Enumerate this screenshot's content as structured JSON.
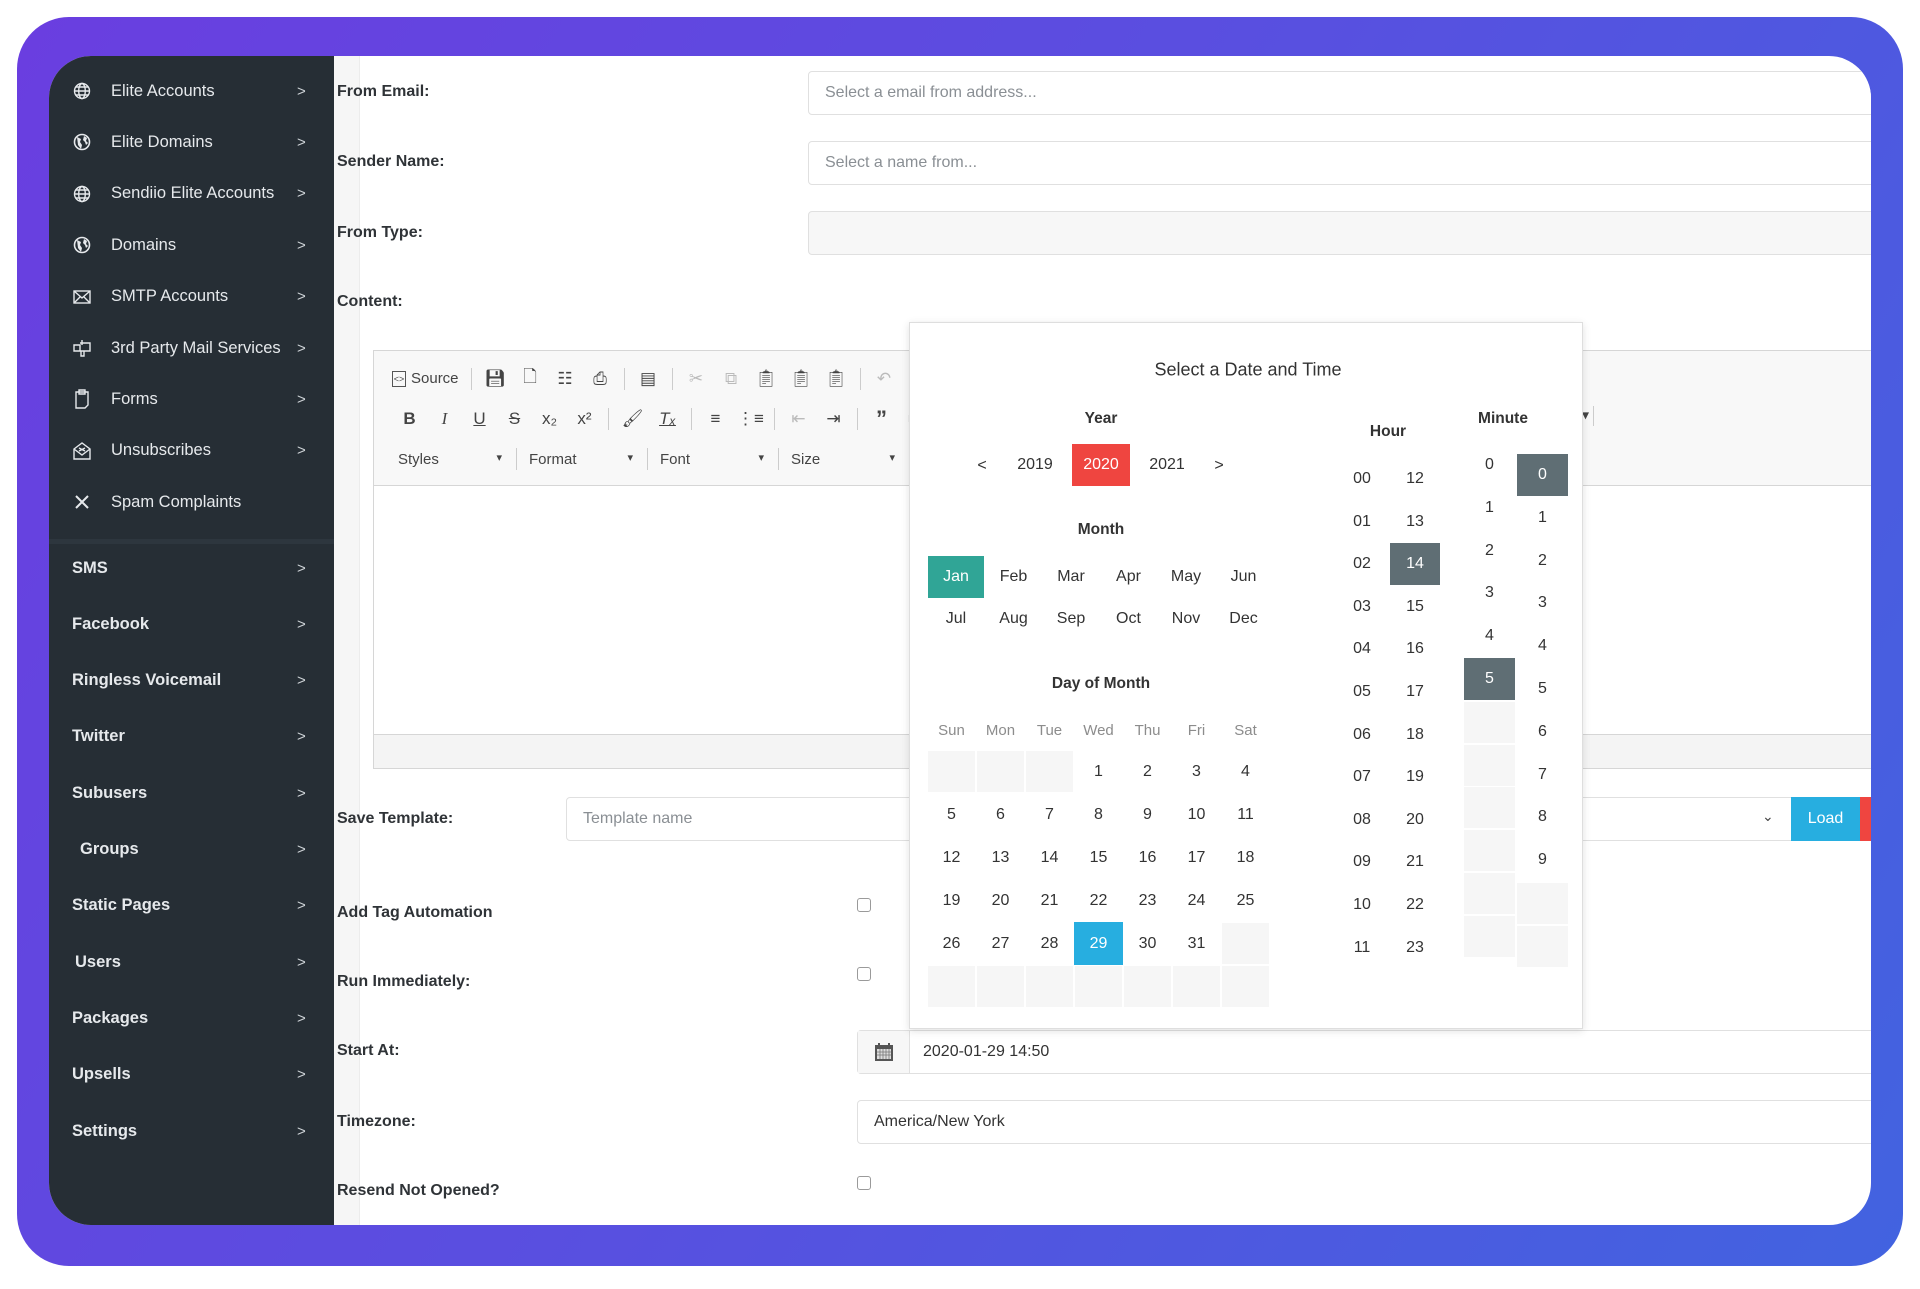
{
  "colors": {
    "sidebar": "#262e35",
    "year_selected": "#ef4540",
    "month_selected": "#30a596",
    "day_selected": "#27aee0",
    "time_selected": "#5f6e74",
    "load_button": "#27aee0"
  },
  "sidebar": {
    "top_items": [
      {
        "label": "Elite Accounts",
        "icon": "globe-grid-icon"
      },
      {
        "label": "Elite Domains",
        "icon": "globe-icon"
      },
      {
        "label": "Sendiio Elite Accounts",
        "icon": "globe-grid-icon"
      },
      {
        "label": "Domains",
        "icon": "globe-icon"
      },
      {
        "label": "SMTP Accounts",
        "icon": "envelope-icon"
      },
      {
        "label": "3rd Party Mail Services",
        "icon": "mailbox-icon"
      },
      {
        "label": "Forms",
        "icon": "clipboard-icon"
      },
      {
        "label": "Unsubscribes",
        "icon": "envelope-open-icon"
      },
      {
        "label": "Spam Complaints",
        "icon": "close-icon"
      }
    ],
    "bottom_items": [
      {
        "label": "SMS"
      },
      {
        "label": "Facebook"
      },
      {
        "label": "Ringless Voicemail"
      },
      {
        "label": "Twitter"
      },
      {
        "label": "Subusers"
      },
      {
        "label": "Groups"
      },
      {
        "label": "Static Pages"
      },
      {
        "label": "Users"
      },
      {
        "label": "Packages"
      },
      {
        "label": "Upsells"
      },
      {
        "label": "Settings"
      }
    ],
    "chevron": ">"
  },
  "form": {
    "from_email": {
      "label": "From Email:",
      "placeholder": "Select a email from address..."
    },
    "sender_name": {
      "label": "Sender Name:",
      "placeholder": "Select a name from..."
    },
    "from_type": {
      "label": "From Type:",
      "value": ""
    },
    "content": {
      "label": "Content:"
    },
    "save_template": {
      "label": "Save Template:",
      "placeholder": "Template name",
      "load_label": "Load"
    },
    "add_tag": {
      "label": "Add Tag Automation",
      "checked": false
    },
    "run_immediately": {
      "label": "Run Immediately:",
      "checked": false
    },
    "start_at": {
      "label": "Start At:",
      "value": "2020-01-29 14:50"
    },
    "timezone": {
      "label": "Timezone:",
      "value": "America/New York"
    },
    "resend": {
      "label": "Resend Not Opened?",
      "checked": false
    }
  },
  "editor": {
    "source_label": "Source",
    "combos": [
      "Styles",
      "Format",
      "Font",
      "Size"
    ]
  },
  "picker": {
    "title": "Select a Date and Time",
    "year_label": "Year",
    "prev": "<",
    "next": ">",
    "years": [
      "2019",
      "2020",
      "2021"
    ],
    "selected_year": "2020",
    "month_label": "Month",
    "months": [
      "Jan",
      "Feb",
      "Mar",
      "Apr",
      "May",
      "Jun",
      "Jul",
      "Aug",
      "Sep",
      "Oct",
      "Nov",
      "Dec"
    ],
    "selected_month": "Jan",
    "day_label": "Day of Month",
    "weekdays": [
      "Sun",
      "Mon",
      "Tue",
      "Wed",
      "Thu",
      "Fri",
      "Sat"
    ],
    "weeks": [
      [
        null,
        null,
        null,
        "1",
        "2",
        "3",
        "4"
      ],
      [
        "5",
        "6",
        "7",
        "8",
        "9",
        "10",
        "11"
      ],
      [
        "12",
        "13",
        "14",
        "15",
        "16",
        "17",
        "18"
      ],
      [
        "19",
        "20",
        "21",
        "22",
        "23",
        "24",
        "25"
      ],
      [
        "26",
        "27",
        "28",
        "29",
        "30",
        "31",
        null
      ],
      [
        null,
        null,
        null,
        null,
        null,
        null,
        null
      ]
    ],
    "selected_day": "29",
    "hour_label": "Hour",
    "hours_am": [
      "00",
      "01",
      "02",
      "03",
      "04",
      "05",
      "06",
      "07",
      "08",
      "09",
      "10",
      "11"
    ],
    "hours_pm": [
      "12",
      "13",
      "14",
      "15",
      "16",
      "17",
      "18",
      "19",
      "20",
      "21",
      "22",
      "23"
    ],
    "selected_hour": "14",
    "minute_label": "Minute",
    "minute_tens": [
      "0",
      "1",
      "2",
      "3",
      "4",
      "5",
      null,
      null,
      null,
      null,
      null,
      null
    ],
    "minute_ones": [
      "0",
      "1",
      "2",
      "3",
      "4",
      "5",
      "6",
      "7",
      "8",
      "9",
      null,
      null
    ],
    "selected_minute_tens": "5",
    "selected_minute_ones": "0"
  }
}
